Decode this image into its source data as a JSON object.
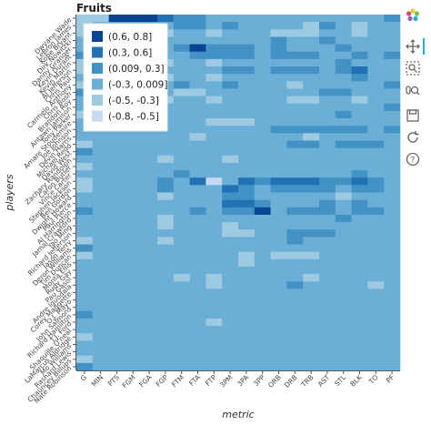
{
  "title": "Fruits",
  "toolbar": {
    "items": [
      {
        "name": "bokeh-logo-icon"
      },
      {
        "name": "pan-icon"
      },
      {
        "name": "box-zoom-icon"
      },
      {
        "name": "wheel-zoom-icon"
      },
      {
        "name": "save-icon"
      },
      {
        "name": "reset-icon"
      },
      {
        "name": "help-icon"
      }
    ]
  },
  "chart_data": {
    "type": "heatmap",
    "title": "Fruits",
    "xlabel": "metric",
    "ylabel": "players",
    "metrics": [
      "G",
      "MIN",
      "PTS",
      "FGM",
      "FGA",
      "FGP",
      "FTM",
      "FTA",
      "FTP",
      "3PM",
      "3PA",
      "3PP",
      "ORB",
      "DRB",
      "TRB",
      "AST",
      "STL",
      "BLK",
      "TO",
      "PF"
    ],
    "players": [
      "Dwyane Wade",
      "LeBron James",
      "Kobe Bryant",
      "Dirk Nowitzki",
      "Danny Granger",
      "Kevin Durant",
      "Kevin Martin",
      "Al Jefferson",
      "Chris Paul",
      "Carmelo Anthony",
      "Chris Bosh",
      "Brandon Roy",
      "Antawn Jamison",
      "Tony Parker",
      "Amare Stoudemire",
      "Joe Johnson",
      "Devin Harris",
      "Michael Redd",
      "David West",
      "Zachary Randolph",
      "Caron Butler",
      "Vince Carter",
      "Stephen Jackson",
      "Ben Gordon",
      "Dwight Howard",
      "Paul Pierce",
      "Al Harrington",
      "Jamal Crawford",
      "Yao Ming",
      "Richard Jefferson",
      "Jason Terry",
      "Deron Williams",
      "Tim Duncan",
      "Monta Ellis",
      "Rudy Gay",
      "Pau Gasol",
      "Andre Iguodala",
      "Corey Maggette",
      "O.J. Mayo",
      "John Salmons",
      "Richard Hamilton",
      "T.J. Ford",
      "Shaquille O'neal",
      "LaMarcus Aldridge",
      "Mo Williams",
      "Rashard Lewis",
      "Chauncey Billups",
      "Nate Robinson"
    ],
    "legend_placement": "top-left",
    "legend": [
      {
        "label": "(0.6, 0.8]",
        "color": "#084594"
      },
      {
        "label": "(0.3, 0.6]",
        "color": "#2171b5"
      },
      {
        "label": "(0.009, 0.3]",
        "color": "#4292c6"
      },
      {
        "label": "(-0.3, 0.009]",
        "color": "#6baed6"
      },
      {
        "label": "(-0.5, -0.3]",
        "color": "#9ecae1"
      },
      {
        "label": "(-0.8, -0.5]",
        "color": "#c6dbef"
      }
    ],
    "bins": [
      [
        0.6,
        0.8
      ],
      [
        0.3,
        0.6
      ],
      [
        0.009,
        0.3
      ],
      [
        -0.3,
        0.009
      ],
      [
        -0.5,
        -0.3
      ],
      [
        -0.8,
        -0.5
      ]
    ],
    "bin_index": [
      [
        4,
        4,
        0,
        0,
        0,
        1,
        2,
        2,
        3,
        3,
        3,
        3,
        3,
        3,
        3,
        3,
        3,
        3,
        3,
        2
      ],
      [
        4,
        3,
        3,
        3,
        3,
        3,
        2,
        2,
        3,
        2,
        3,
        3,
        3,
        3,
        4,
        2,
        3,
        4,
        3,
        3
      ],
      [
        4,
        3,
        3,
        3,
        3,
        4,
        3,
        3,
        4,
        3,
        3,
        3,
        4,
        4,
        4,
        3,
        3,
        4,
        3,
        3
      ],
      [
        3,
        3,
        3,
        3,
        3,
        3,
        3,
        3,
        3,
        3,
        3,
        3,
        2,
        3,
        3,
        2,
        3,
        3,
        3,
        3
      ],
      [
        3,
        3,
        3,
        3,
        3,
        3,
        2,
        0,
        2,
        2,
        2,
        3,
        2,
        3,
        3,
        3,
        2,
        3,
        3,
        3
      ],
      [
        2,
        3,
        3,
        3,
        3,
        3,
        3,
        2,
        2,
        2,
        2,
        3,
        2,
        2,
        2,
        3,
        3,
        2,
        3,
        2
      ],
      [
        4,
        3,
        3,
        3,
        3,
        4,
        3,
        3,
        4,
        3,
        3,
        3,
        3,
        3,
        3,
        3,
        2,
        3,
        3,
        3
      ],
      [
        4,
        3,
        3,
        3,
        3,
        3,
        3,
        3,
        3,
        2,
        2,
        3,
        2,
        2,
        2,
        3,
        2,
        1,
        3,
        3
      ],
      [
        3,
        3,
        3,
        3,
        3,
        4,
        3,
        3,
        4,
        3,
        3,
        3,
        3,
        3,
        3,
        3,
        3,
        2,
        3,
        3
      ],
      [
        4,
        3,
        3,
        3,
        3,
        3,
        2,
        3,
        3,
        2,
        3,
        3,
        3,
        4,
        3,
        3,
        3,
        3,
        3,
        2
      ],
      [
        2,
        3,
        3,
        3,
        3,
        3,
        4,
        4,
        3,
        3,
        3,
        3,
        3,
        3,
        3,
        2,
        2,
        3,
        3,
        3
      ],
      [
        3,
        3,
        3,
        3,
        3,
        4,
        3,
        3,
        4,
        3,
        3,
        3,
        3,
        4,
        4,
        3,
        3,
        4,
        3,
        3
      ],
      [
        3,
        3,
        3,
        3,
        3,
        3,
        3,
        3,
        3,
        3,
        3,
        3,
        3,
        3,
        3,
        3,
        3,
        3,
        3,
        2
      ],
      [
        4,
        4,
        3,
        3,
        3,
        3,
        3,
        3,
        3,
        3,
        3,
        3,
        3,
        3,
        3,
        3,
        2,
        3,
        3,
        3
      ],
      [
        3,
        3,
        3,
        3,
        3,
        3,
        3,
        3,
        4,
        4,
        4,
        3,
        3,
        3,
        3,
        3,
        3,
        3,
        3,
        3
      ],
      [
        3,
        3,
        3,
        3,
        3,
        3,
        3,
        3,
        3,
        3,
        3,
        3,
        2,
        2,
        2,
        2,
        2,
        2,
        3,
        2
      ],
      [
        3,
        3,
        3,
        3,
        3,
        3,
        3,
        4,
        3,
        3,
        3,
        3,
        3,
        3,
        4,
        3,
        3,
        3,
        3,
        3
      ],
      [
        4,
        3,
        3,
        3,
        3,
        3,
        3,
        3,
        3,
        3,
        3,
        3,
        3,
        2,
        2,
        3,
        2,
        2,
        2,
        3
      ],
      [
        2,
        3,
        3,
        3,
        3,
        3,
        3,
        3,
        3,
        3,
        3,
        3,
        3,
        3,
        3,
        3,
        3,
        3,
        3,
        3
      ],
      [
        3,
        3,
        3,
        3,
        3,
        4,
        3,
        3,
        3,
        4,
        3,
        3,
        3,
        3,
        3,
        3,
        3,
        3,
        3,
        3
      ],
      [
        4,
        3,
        3,
        3,
        3,
        3,
        3,
        3,
        3,
        3,
        3,
        3,
        3,
        3,
        3,
        3,
        3,
        3,
        3,
        3
      ],
      [
        3,
        3,
        3,
        3,
        3,
        3,
        2,
        3,
        3,
        3,
        3,
        3,
        3,
        3,
        3,
        3,
        3,
        2,
        3,
        3
      ],
      [
        4,
        3,
        3,
        3,
        3,
        2,
        3,
        1,
        5,
        3,
        1,
        2,
        1,
        1,
        1,
        2,
        2,
        1,
        2,
        3
      ],
      [
        4,
        3,
        3,
        3,
        3,
        2,
        3,
        3,
        3,
        1,
        2,
        3,
        2,
        2,
        2,
        2,
        3,
        2,
        2,
        3
      ],
      [
        3,
        3,
        3,
        3,
        3,
        4,
        3,
        3,
        3,
        2,
        2,
        3,
        3,
        3,
        3,
        3,
        4,
        3,
        3,
        3
      ],
      [
        3,
        3,
        3,
        3,
        3,
        3,
        3,
        3,
        3,
        1,
        1,
        2,
        3,
        3,
        3,
        2,
        3,
        2,
        3,
        3
      ],
      [
        2,
        3,
        3,
        3,
        3,
        3,
        3,
        2,
        3,
        2,
        2,
        0,
        3,
        2,
        2,
        2,
        3,
        2,
        2,
        3
      ],
      [
        3,
        3,
        3,
        3,
        3,
        4,
        3,
        3,
        3,
        3,
        3,
        3,
        3,
        3,
        3,
        3,
        2,
        3,
        3,
        3
      ],
      [
        3,
        3,
        3,
        3,
        3,
        4,
        3,
        3,
        3,
        4,
        3,
        3,
        3,
        3,
        3,
        3,
        3,
        3,
        3,
        3
      ],
      [
        3,
        3,
        3,
        3,
        3,
        3,
        3,
        3,
        3,
        4,
        4,
        3,
        3,
        2,
        2,
        2,
        3,
        3,
        3,
        3
      ],
      [
        4,
        3,
        3,
        3,
        3,
        4,
        3,
        3,
        3,
        3,
        3,
        3,
        3,
        2,
        3,
        3,
        3,
        3,
        3,
        3
      ],
      [
        2,
        3,
        3,
        3,
        3,
        3,
        3,
        3,
        3,
        3,
        3,
        3,
        3,
        3,
        3,
        3,
        3,
        3,
        3,
        3
      ],
      [
        4,
        3,
        3,
        3,
        3,
        3,
        3,
        3,
        3,
        3,
        4,
        3,
        4,
        4,
        4,
        3,
        3,
        3,
        3,
        3
      ],
      [
        3,
        3,
        3,
        3,
        3,
        3,
        3,
        3,
        3,
        3,
        4,
        3,
        3,
        3,
        3,
        3,
        3,
        3,
        3,
        3
      ],
      [
        3,
        3,
        3,
        3,
        3,
        3,
        3,
        3,
        3,
        3,
        3,
        3,
        3,
        3,
        3,
        3,
        3,
        3,
        3,
        3
      ],
      [
        3,
        3,
        3,
        3,
        3,
        3,
        4,
        3,
        4,
        3,
        3,
        3,
        3,
        3,
        4,
        3,
        3,
        3,
        3,
        3
      ],
      [
        3,
        3,
        3,
        3,
        3,
        3,
        3,
        3,
        4,
        3,
        3,
        3,
        3,
        2,
        3,
        3,
        3,
        3,
        4,
        3
      ],
      [
        3,
        3,
        3,
        3,
        3,
        3,
        3,
        3,
        3,
        3,
        3,
        3,
        3,
        3,
        3,
        3,
        3,
        3,
        3,
        3
      ],
      [
        3,
        3,
        3,
        3,
        3,
        3,
        3,
        3,
        3,
        3,
        3,
        3,
        3,
        3,
        3,
        3,
        3,
        3,
        3,
        3
      ],
      [
        3,
        3,
        3,
        3,
        3,
        3,
        3,
        3,
        3,
        3,
        3,
        3,
        3,
        3,
        3,
        3,
        3,
        3,
        3,
        3
      ],
      [
        2,
        3,
        3,
        3,
        3,
        3,
        3,
        3,
        3,
        3,
        3,
        3,
        3,
        3,
        3,
        3,
        3,
        3,
        3,
        3
      ],
      [
        3,
        3,
        3,
        3,
        3,
        3,
        3,
        3,
        4,
        3,
        3,
        3,
        3,
        3,
        3,
        3,
        3,
        3,
        3,
        3
      ],
      [
        3,
        3,
        3,
        3,
        3,
        3,
        3,
        3,
        3,
        3,
        3,
        3,
        3,
        3,
        3,
        3,
        3,
        3,
        3,
        3
      ],
      [
        4,
        3,
        3,
        3,
        3,
        3,
        3,
        3,
        3,
        3,
        3,
        3,
        3,
        3,
        3,
        3,
        3,
        3,
        3,
        3
      ],
      [
        3,
        3,
        3,
        3,
        3,
        3,
        3,
        3,
        3,
        3,
        3,
        3,
        3,
        3,
        3,
        3,
        3,
        3,
        3,
        3
      ],
      [
        3,
        3,
        3,
        3,
        3,
        3,
        3,
        3,
        3,
        3,
        3,
        3,
        3,
        3,
        3,
        3,
        3,
        3,
        3,
        3
      ],
      [
        4,
        3,
        3,
        3,
        3,
        3,
        3,
        3,
        3,
        3,
        3,
        3,
        3,
        3,
        3,
        3,
        3,
        3,
        3,
        3
      ],
      [
        2,
        3,
        3,
        3,
        3,
        3,
        3,
        3,
        3,
        3,
        3,
        3,
        3,
        3,
        3,
        3,
        3,
        3,
        3,
        3
      ]
    ]
  }
}
